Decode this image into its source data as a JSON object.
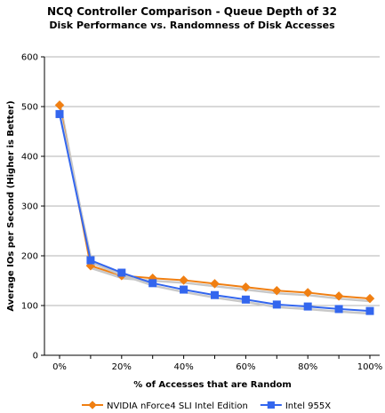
{
  "chart_data": {
    "type": "line",
    "title": "NCQ Controller Comparison - Queue Depth of 32",
    "subtitle": "Disk Performance vs. Randomness of Disk Accesses",
    "xlabel": "% of Accesses that are Random",
    "ylabel": "Average IOs per Second (Higher is Better)",
    "categories": [
      "0%",
      "10%",
      "20%",
      "30%",
      "40%",
      "50%",
      "60%",
      "70%",
      "80%",
      "90%",
      "100%"
    ],
    "x_tick_labels": [
      "0%",
      "20%",
      "40%",
      "60%",
      "80%",
      "100%"
    ],
    "ylim": [
      0,
      600
    ],
    "y_ticks": [
      0,
      100,
      200,
      300,
      400,
      500,
      600
    ],
    "grid": true,
    "legend_position": "bottom",
    "series": [
      {
        "name": "NVIDIA nForce4 SLI Intel Edition",
        "color": "#f07f12",
        "marker": "diamond",
        "values": [
          503,
          180,
          160,
          155,
          151,
          144,
          137,
          130,
          126,
          119,
          114
        ]
      },
      {
        "name": "Intel 955X",
        "color": "#3366ee",
        "marker": "square",
        "values": [
          485,
          191,
          166,
          145,
          132,
          121,
          112,
          102,
          98,
          93,
          89
        ]
      }
    ]
  }
}
